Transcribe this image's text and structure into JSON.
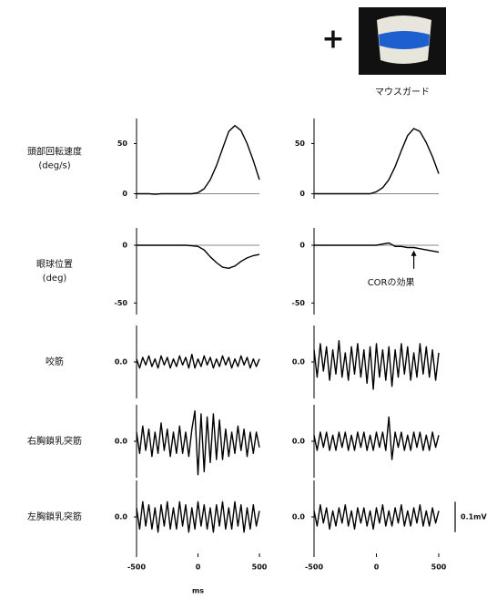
{
  "header": {
    "symbol": "+",
    "label": "マウスガード"
  },
  "scale_bar": {
    "value": 0.1,
    "label": "0.1mV"
  },
  "chart_data": [
    {
      "type": "line",
      "ylabel": [
        "頭部回転速度",
        "(deg/s)"
      ],
      "xlim": [
        -500,
        500
      ],
      "ylim": [
        -5,
        75
      ],
      "yticks": [
        0,
        50
      ],
      "zero_line": true,
      "color": "#000000",
      "x": [
        -500,
        -450,
        -400,
        -350,
        -300,
        -250,
        -200,
        -150,
        -100,
        -50,
        0,
        50,
        100,
        150,
        200,
        250,
        300,
        350,
        400,
        450,
        500
      ],
      "values": [
        0,
        0,
        0,
        -0.5,
        0,
        0,
        0,
        0,
        0,
        0,
        1,
        5,
        14,
        28,
        45,
        62,
        68,
        63,
        50,
        33,
        14
      ]
    },
    {
      "type": "line",
      "xlim": [
        -500,
        500
      ],
      "ylim": [
        -5,
        75
      ],
      "yticks": [
        0,
        50
      ],
      "zero_line": true,
      "color": "#000000",
      "x": [
        -500,
        -450,
        -400,
        -350,
        -300,
        -250,
        -200,
        -150,
        -100,
        -50,
        0,
        50,
        100,
        150,
        200,
        250,
        300,
        350,
        400,
        450,
        500
      ],
      "values": [
        0,
        0,
        0,
        0,
        0,
        0,
        0,
        0,
        0,
        0,
        2,
        6,
        14,
        27,
        43,
        58,
        65,
        62,
        51,
        37,
        20
      ]
    },
    {
      "type": "line",
      "ylabel": [
        "眼球位置",
        "(deg)"
      ],
      "xlim": [
        -500,
        500
      ],
      "ylim": [
        -60,
        15
      ],
      "yticks": [
        0,
        -50
      ],
      "zero_line": true,
      "color": "#000000",
      "x": [
        -500,
        -450,
        -400,
        -350,
        -300,
        -250,
        -200,
        -150,
        -100,
        -50,
        0,
        50,
        100,
        150,
        200,
        250,
        300,
        350,
        400,
        450,
        500
      ],
      "values": [
        0,
        0,
        0,
        0,
        0,
        0,
        0,
        0,
        0,
        -0.5,
        -1,
        -4,
        -10,
        -15,
        -19,
        -20,
        -18,
        -14,
        -11,
        -9,
        -8
      ]
    },
    {
      "type": "line",
      "xlim": [
        -500,
        500
      ],
      "ylim": [
        -60,
        15
      ],
      "yticks": [
        0,
        -50
      ],
      "zero_line": true,
      "color": "#000000",
      "annotation": {
        "text": "CORの効果",
        "x": 300,
        "y": -3
      },
      "x": [
        -500,
        -450,
        -400,
        -350,
        -300,
        -250,
        -200,
        -150,
        -100,
        -50,
        0,
        50,
        100,
        150,
        200,
        250,
        300,
        350,
        400,
        450,
        500
      ],
      "values": [
        0,
        0,
        0,
        0,
        0,
        0,
        0,
        0,
        0,
        0,
        0,
        1,
        2,
        -1,
        -1,
        -2,
        -2,
        -3,
        -4,
        -5,
        -6
      ]
    },
    {
      "type": "line",
      "ylabel": [
        "咬筋"
      ],
      "xlim": [
        -500,
        500
      ],
      "ylim": [
        -0.12,
        0.12
      ],
      "yticks": [
        {
          "value": 0,
          "label": "0.0"
        }
      ],
      "color": "#000000",
      "x": [
        -500,
        -475,
        -450,
        -425,
        -400,
        -375,
        -350,
        -325,
        -300,
        -275,
        -250,
        -225,
        -200,
        -175,
        -150,
        -125,
        -100,
        -75,
        -50,
        -25,
        0,
        25,
        50,
        75,
        100,
        125,
        150,
        175,
        200,
        225,
        250,
        275,
        300,
        325,
        350,
        375,
        400,
        425,
        450,
        475,
        500
      ],
      "values": [
        0.01,
        -0.02,
        0.015,
        -0.01,
        0.02,
        -0.015,
        0.01,
        -0.02,
        0.02,
        -0.01,
        0.015,
        -0.02,
        0.01,
        -0.015,
        0.02,
        -0.01,
        0.015,
        -0.02,
        0.025,
        -0.02,
        0.01,
        -0.015,
        0.02,
        -0.01,
        0.015,
        -0.02,
        0.01,
        -0.015,
        0.02,
        -0.01,
        0.015,
        -0.02,
        0.01,
        -0.015,
        0.02,
        -0.01,
        0.015,
        -0.02,
        0.01,
        -0.015,
        0.01
      ]
    },
    {
      "type": "line",
      "xlim": [
        -500,
        500
      ],
      "ylim": [
        -0.12,
        0.12
      ],
      "yticks": [
        {
          "value": 0,
          "label": "0.0"
        }
      ],
      "color": "#000000",
      "x": [
        -500,
        -475,
        -450,
        -425,
        -400,
        -375,
        -350,
        -325,
        -300,
        -275,
        -250,
        -225,
        -200,
        -175,
        -150,
        -125,
        -100,
        -75,
        -50,
        -25,
        0,
        25,
        50,
        75,
        100,
        125,
        150,
        175,
        200,
        225,
        250,
        275,
        300,
        325,
        350,
        375,
        400,
        425,
        450,
        475,
        500
      ],
      "values": [
        0.04,
        -0.05,
        0.06,
        -0.03,
        0.05,
        -0.06,
        0.04,
        -0.04,
        0.07,
        -0.05,
        0.03,
        -0.06,
        0.05,
        -0.04,
        0.06,
        -0.05,
        0.04,
        -0.07,
        0.05,
        -0.09,
        0.06,
        -0.05,
        0.04,
        -0.06,
        0.05,
        -0.08,
        0.04,
        -0.05,
        0.06,
        -0.04,
        0.05,
        -0.06,
        0.03,
        -0.05,
        0.06,
        -0.04,
        0.05,
        -0.05,
        0.04,
        -0.06,
        0.03
      ]
    },
    {
      "type": "line",
      "ylabel": [
        "右胸鎖乳突筋"
      ],
      "xlim": [
        -500,
        500
      ],
      "ylim": [
        -0.12,
        0.12
      ],
      "yticks": [
        {
          "value": 0,
          "label": "0.0"
        }
      ],
      "color": "#000000",
      "x": [
        -500,
        -475,
        -450,
        -425,
        -400,
        -375,
        -350,
        -325,
        -300,
        -275,
        -250,
        -225,
        -200,
        -175,
        -150,
        -125,
        -100,
        -75,
        -50,
        -25,
        0,
        25,
        50,
        75,
        100,
        125,
        150,
        175,
        200,
        225,
        250,
        275,
        300,
        325,
        350,
        375,
        400,
        425,
        450,
        475,
        500
      ],
      "values": [
        0.03,
        -0.04,
        0.05,
        -0.03,
        0.04,
        -0.05,
        0.03,
        -0.04,
        0.06,
        -0.03,
        0.04,
        -0.05,
        0.03,
        -0.04,
        0.05,
        -0.04,
        0.03,
        -0.05,
        0.04,
        0.1,
        -0.11,
        0.09,
        -0.1,
        0.08,
        -0.07,
        0.09,
        -0.06,
        0.07,
        -0.06,
        0.04,
        -0.05,
        0.03,
        -0.04,
        0.05,
        -0.03,
        0.04,
        -0.05,
        0.03,
        -0.04,
        0.03,
        -0.02
      ]
    },
    {
      "type": "line",
      "xlim": [
        -500,
        500
      ],
      "ylim": [
        -0.12,
        0.12
      ],
      "yticks": [
        {
          "value": 0,
          "label": "0.0"
        }
      ],
      "color": "#000000",
      "x": [
        -500,
        -475,
        -450,
        -425,
        -400,
        -375,
        -350,
        -325,
        -300,
        -275,
        -250,
        -225,
        -200,
        -175,
        -150,
        -125,
        -100,
        -75,
        -50,
        -25,
        0,
        25,
        50,
        75,
        100,
        125,
        150,
        175,
        200,
        225,
        250,
        275,
        300,
        325,
        350,
        375,
        400,
        425,
        450,
        475,
        500
      ],
      "values": [
        0.02,
        -0.03,
        0.03,
        -0.02,
        0.03,
        -0.03,
        0.02,
        -0.03,
        0.03,
        -0.02,
        0.03,
        -0.03,
        0.02,
        -0.03,
        0.03,
        -0.02,
        0.03,
        -0.03,
        0.02,
        -0.03,
        0.03,
        -0.02,
        0.03,
        -0.03,
        0.08,
        -0.06,
        0.03,
        -0.02,
        0.03,
        -0.03,
        0.02,
        -0.03,
        0.03,
        -0.02,
        0.03,
        -0.03,
        0.02,
        -0.03,
        0.03,
        -0.02,
        0.02
      ]
    },
    {
      "type": "line",
      "ylabel": [
        "左胸鎖乳突筋"
      ],
      "xlim": [
        -500,
        500
      ],
      "ylim": [
        -0.12,
        0.12
      ],
      "yticks": [
        {
          "value": 0,
          "label": "0.0"
        }
      ],
      "xticks": [
        -500,
        0,
        500
      ],
      "xlabel": "ms",
      "color": "#000000",
      "x": [
        -500,
        -475,
        -450,
        -425,
        -400,
        -375,
        -350,
        -325,
        -300,
        -275,
        -250,
        -225,
        -200,
        -175,
        -150,
        -125,
        -100,
        -75,
        -50,
        -25,
        0,
        25,
        50,
        75,
        100,
        125,
        150,
        175,
        200,
        225,
        250,
        275,
        300,
        325,
        350,
        375,
        400,
        425,
        450,
        475,
        500
      ],
      "values": [
        0.03,
        -0.04,
        0.05,
        -0.03,
        0.04,
        -0.04,
        0.03,
        -0.05,
        0.04,
        -0.03,
        0.05,
        -0.04,
        0.03,
        -0.04,
        0.05,
        -0.03,
        0.04,
        -0.05,
        0.03,
        -0.04,
        0.05,
        -0.03,
        0.04,
        -0.04,
        0.03,
        -0.05,
        0.04,
        -0.03,
        0.05,
        -0.04,
        0.03,
        -0.04,
        0.05,
        -0.03,
        0.04,
        -0.05,
        0.03,
        -0.04,
        0.04,
        -0.03,
        0.02
      ]
    },
    {
      "type": "line",
      "xlim": [
        -500,
        500
      ],
      "ylim": [
        -0.12,
        0.12
      ],
      "yticks": [
        {
          "value": 0,
          "label": "0.0"
        }
      ],
      "xticks": [
        -500,
        0,
        500
      ],
      "color": "#000000",
      "x": [
        -500,
        -475,
        -450,
        -425,
        -400,
        -375,
        -350,
        -325,
        -300,
        -275,
        -250,
        -225,
        -200,
        -175,
        -150,
        -125,
        -100,
        -75,
        -50,
        -25,
        0,
        25,
        50,
        75,
        100,
        125,
        150,
        175,
        200,
        225,
        250,
        275,
        300,
        325,
        350,
        375,
        400,
        425,
        450,
        475,
        500
      ],
      "values": [
        0.02,
        -0.03,
        0.04,
        -0.02,
        0.03,
        -0.04,
        0.02,
        -0.03,
        0.03,
        -0.02,
        0.04,
        -0.03,
        0.02,
        -0.04,
        0.03,
        -0.02,
        0.03,
        -0.03,
        0.02,
        -0.04,
        0.03,
        -0.02,
        0.04,
        -0.03,
        0.02,
        -0.03,
        0.03,
        -0.02,
        0.04,
        -0.03,
        0.02,
        -0.03,
        0.03,
        -0.02,
        0.04,
        -0.03,
        0.02,
        -0.03,
        0.03,
        -0.02,
        0.02
      ]
    }
  ]
}
